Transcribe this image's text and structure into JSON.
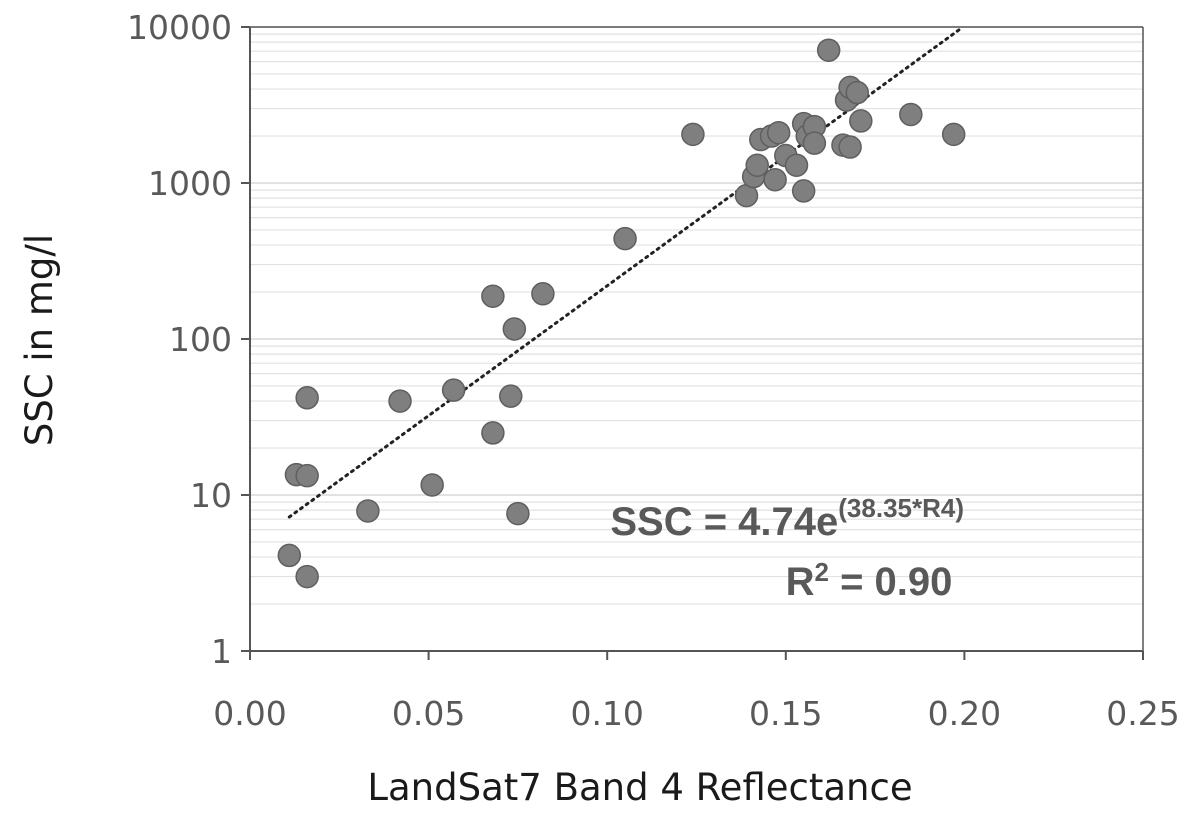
{
  "chart_data": {
    "type": "scatter",
    "title": "",
    "xlabel": "LandSat7 Band 4 Reflectance",
    "ylabel": "SSC in mg/l",
    "xlim": [
      0,
      0.25
    ],
    "ylim": [
      1,
      10000
    ],
    "yscale": "log",
    "xticks": [
      "0.00",
      "0.05",
      "0.10",
      "0.15",
      "0.20",
      "0.25"
    ],
    "yticks": [
      "1",
      "10",
      "100",
      "1000",
      "10000"
    ],
    "grid": "horizontal minor (log)",
    "marker_color": "#7f7f7f",
    "points": [
      {
        "x": 0.011,
        "y": 4.1
      },
      {
        "x": 0.016,
        "y": 3.0
      },
      {
        "x": 0.013,
        "y": 13.5
      },
      {
        "x": 0.016,
        "y": 13.3
      },
      {
        "x": 0.016,
        "y": 42
      },
      {
        "x": 0.033,
        "y": 7.9
      },
      {
        "x": 0.042,
        "y": 40
      },
      {
        "x": 0.051,
        "y": 11.6
      },
      {
        "x": 0.057,
        "y": 47
      },
      {
        "x": 0.068,
        "y": 25
      },
      {
        "x": 0.068,
        "y": 188
      },
      {
        "x": 0.073,
        "y": 43
      },
      {
        "x": 0.074,
        "y": 116
      },
      {
        "x": 0.075,
        "y": 7.6
      },
      {
        "x": 0.082,
        "y": 195
      },
      {
        "x": 0.105,
        "y": 440
      },
      {
        "x": 0.124,
        "y": 2050
      },
      {
        "x": 0.139,
        "y": 830
      },
      {
        "x": 0.141,
        "y": 1100
      },
      {
        "x": 0.142,
        "y": 1300
      },
      {
        "x": 0.143,
        "y": 1900
      },
      {
        "x": 0.146,
        "y": 2000
      },
      {
        "x": 0.147,
        "y": 1050
      },
      {
        "x": 0.148,
        "y": 2100
      },
      {
        "x": 0.15,
        "y": 1500
      },
      {
        "x": 0.153,
        "y": 1300
      },
      {
        "x": 0.155,
        "y": 2400
      },
      {
        "x": 0.155,
        "y": 890
      },
      {
        "x": 0.156,
        "y": 2000
      },
      {
        "x": 0.158,
        "y": 2300
      },
      {
        "x": 0.158,
        "y": 1800
      },
      {
        "x": 0.162,
        "y": 7100
      },
      {
        "x": 0.166,
        "y": 1750
      },
      {
        "x": 0.167,
        "y": 3400
      },
      {
        "x": 0.168,
        "y": 4100
      },
      {
        "x": 0.168,
        "y": 1700
      },
      {
        "x": 0.17,
        "y": 3800
      },
      {
        "x": 0.171,
        "y": 2500
      },
      {
        "x": 0.185,
        "y": 2750
      },
      {
        "x": 0.197,
        "y": 2050
      }
    ],
    "trendline": {
      "type": "exponential",
      "a": 4.74,
      "b": 38.35,
      "x_range": [
        0.011,
        0.199
      ],
      "style": "dotted"
    },
    "annotation": {
      "equation_base": "SSC = 4.74e",
      "equation_exponent": "(38.35*R4)",
      "r2_label": "R",
      "r2_superscript": "2",
      "r2_value": " = 0.90"
    }
  }
}
